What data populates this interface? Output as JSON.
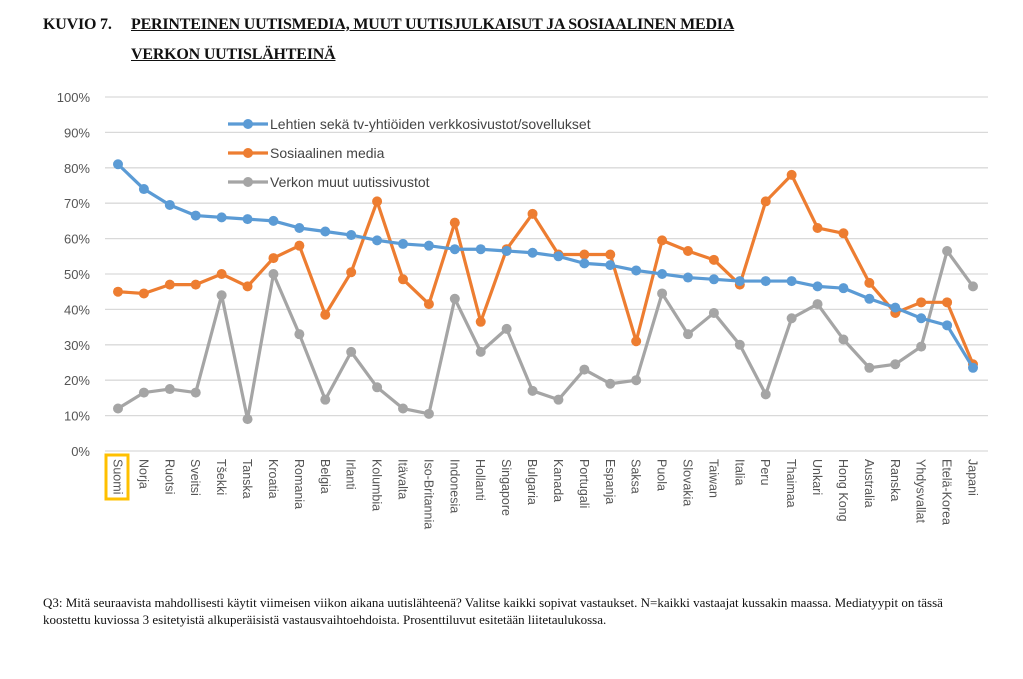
{
  "figure": {
    "prefix": "KUVIO 7.",
    "title_line1": "PERINTEINEN UUTISMEDIA, MUUT UUTISJULKAISUT JA SOSIAALINEN MEDIA",
    "title_line2": "VERKON UUTISLÄHTEINÄ",
    "footnote": "Q3: Mitä seuraavista mahdollisesti käytit viimeisen viikon aikana uutislähteenä? Valitse kaikki sopivat vastaukset. N=kaikki vastaajat kussakin maassa. Mediatyypit on tässä koostettu kuviossa 3 esitetyistä alkuperäisistä vastausvaihtoehdoista. Prosenttiluvut esitetään liitetaulukossa."
  },
  "chart_data": {
    "type": "line",
    "title": "PERINTEINEN UUTISMEDIA, MUUT UUTISJULKAISUT JA SOSIAALINEN MEDIA VERKON UUTISLÄHTEINÄ",
    "xlabel": "",
    "ylabel": "",
    "ylim": [
      0,
      100
    ],
    "yticks": [
      "0%",
      "10%",
      "20%",
      "30%",
      "40%",
      "50%",
      "60%",
      "70%",
      "80%",
      "90%",
      "100%"
    ],
    "grid": true,
    "legend_position": "top-center",
    "highlighted_category": "Suomi",
    "highlight_color": "#FFC000",
    "categories": [
      "Suomi",
      "Norja",
      "Ruotsi",
      "Sveitsi",
      "Tšekki",
      "Tanska",
      "Kroatia",
      "Romania",
      "Belgia",
      "Irlanti",
      "Kolumbia",
      "Itävalta",
      "Iso-Britannia",
      "Indonesia",
      "Hollanti",
      "Singapore",
      "Bulgaria",
      "Kanada",
      "Portugali",
      "Espanja",
      "Saksa",
      "Puola",
      "Slovakia",
      "Taiwan",
      "Italia",
      "Peru",
      "Thaimaa",
      "Unkari",
      "Hong Kong",
      "Australia",
      "Ranska",
      "Yhdysvallat",
      "Etelä-Korea",
      "Japani"
    ],
    "series": [
      {
        "name": "Lehtien sekä tv-yhtiöiden verkkosivustot/sovellukset",
        "color": "#5B9BD5",
        "values": [
          81,
          74,
          69.5,
          66.5,
          66,
          65.5,
          65,
          63,
          62,
          61,
          59.5,
          58.5,
          58,
          57,
          57,
          56.5,
          56,
          55,
          53,
          52.5,
          51,
          50,
          49,
          48.5,
          48,
          48,
          48,
          46.5,
          46,
          43,
          40.5,
          37.5,
          35.5,
          23.5
        ]
      },
      {
        "name": "Sosiaalinen media",
        "color": "#ED7D31",
        "values": [
          45,
          44.5,
          47,
          47,
          50,
          46.5,
          54.5,
          58,
          38.5,
          50.5,
          70.5,
          48.5,
          41.5,
          64.5,
          36.5,
          57,
          67,
          55.5,
          55.5,
          55.5,
          31,
          59.5,
          56.5,
          54,
          47,
          70.5,
          78,
          63,
          61.5,
          47.5,
          39,
          42,
          42,
          24.5
        ]
      },
      {
        "name": "Verkon muut uutissivustot",
        "color": "#A5A5A5",
        "values": [
          12,
          16.5,
          17.5,
          16.5,
          44,
          9,
          50,
          33,
          14.5,
          28,
          18,
          12,
          10.5,
          43,
          28,
          34.5,
          17,
          14.5,
          23,
          19,
          20,
          44.5,
          33,
          39,
          30,
          16,
          37.5,
          41.5,
          31.5,
          23.5,
          24.5,
          29.5,
          56.5,
          46.5
        ]
      }
    ]
  }
}
